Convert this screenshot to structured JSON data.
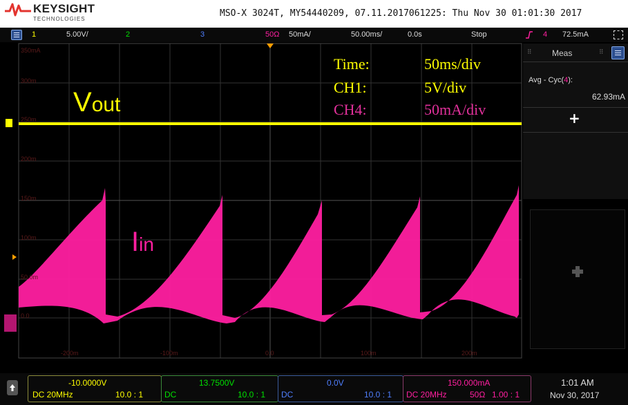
{
  "header": {
    "brand": "KEYSIGHT",
    "brand_sub": "TECHNOLOGIES",
    "model_info": "MSO-X 3024T, MY54440209, 07.11.2017061225: Thu Nov 30 01:01:30 2017"
  },
  "status_bar": {
    "ch1_num": "1",
    "ch1_scale": "5.00V/",
    "ch2_num": "2",
    "ch3_num": "3",
    "ch4_impedance": "50Ω",
    "ch4_scale": "50mA/",
    "timebase": "50.00ms/",
    "delay": "0.0s",
    "run_state": "Stop",
    "trigger_channel": "4",
    "trigger_level": "72.5mA"
  },
  "grid": {
    "y_labels": [
      "350mA",
      "300m",
      "250m",
      "200m",
      "150m",
      "100m",
      "50.0m",
      "0.0"
    ],
    "x_labels": [
      "-200m",
      "-100m",
      "0.0",
      "100m",
      "200m"
    ]
  },
  "annotations": {
    "vout_main": "V",
    "vout_sub": "out",
    "iin_main": "I",
    "iin_sub": "in",
    "time_label": "Time:",
    "time_value": "50ms/div",
    "ch1_label": "CH1:",
    "ch1_value": "5V/div",
    "ch4_label": "CH4:",
    "ch4_value": "50mA/div"
  },
  "meas_panel": {
    "title": "Meas",
    "avg_label": "Avg - Cyc(",
    "avg_channel": "4",
    "avg_close": "):",
    "avg_value": "62.93mA",
    "add_symbol": "+"
  },
  "footer": {
    "ch1_offset": "-10.0000V",
    "ch1_coupling": "DC 20MHz",
    "ch1_probe": "10.0 : 1",
    "ch2_offset": "13.7500V",
    "ch2_coupling": "DC",
    "ch2_probe": "10.0 : 1",
    "ch3_offset": "0.0V",
    "ch3_coupling": "DC",
    "ch3_probe": "10.0 : 1",
    "ch4_offset": "150.000mA",
    "ch4_coupling": "DC 20MHz",
    "ch4_impedance": "50Ω",
    "ch4_probe": "1.00 : 1",
    "time": "1:01 AM",
    "date": "Nov 30, 2017"
  },
  "colors": {
    "ch1": "#ffff00",
    "ch2": "#00e000",
    "ch3": "#4f7fff",
    "ch4": "#ff1fa0",
    "grid": "#3a3a3a",
    "text_magenta": "#e0309a"
  }
}
